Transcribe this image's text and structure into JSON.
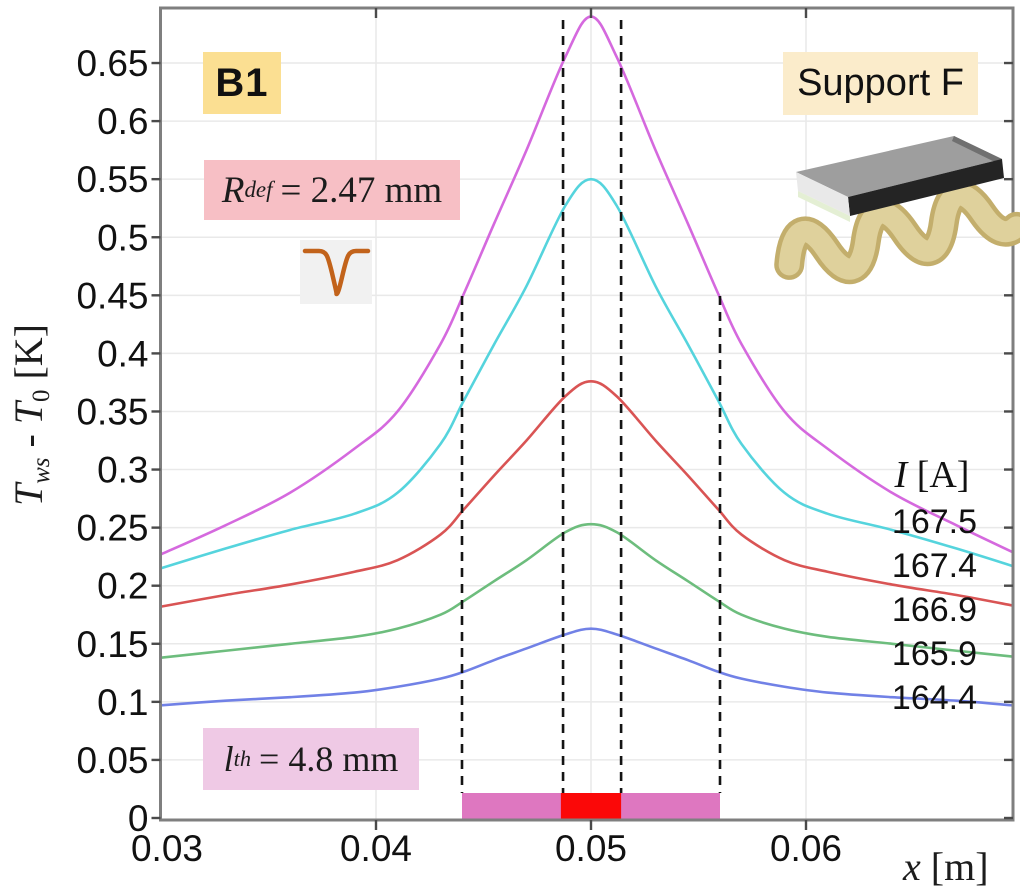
{
  "annotations": {
    "b1": "B1",
    "support": "Support F",
    "r_def": {
      "symbol": "R",
      "subscript": "def",
      "rest": "= 2.47 mm"
    },
    "l_th": {
      "symbol": "l",
      "subscript": "th",
      "rest": "= 4.8 mm"
    },
    "notch_icon": "defect-notch-icon",
    "support_icon": "corrugated-support-3d"
  },
  "axis_titles": {
    "y": {
      "t1": "T",
      "s1": "ws",
      "mid": "-",
      "t2": "T",
      "s2": "0",
      "units": "[K]"
    },
    "x": {
      "sym": "x",
      "units": "[m]"
    }
  },
  "colors": {
    "b1_bg": "#fbdf92",
    "support_bg": "#fbeccb",
    "rdef_bg": "#f7bfc5",
    "lth_bg": "#efc9e5",
    "bar_pink": "#de77c0",
    "bar_red": "#fb0808",
    "frame": "#7f7f7f",
    "grid": "#e9e9e9",
    "dashes": "#141414",
    "notch_curve": "#c2631b"
  },
  "chart_data": {
    "type": "line",
    "title": "",
    "xlabel": "x [m]",
    "ylabel": "T_ws - T_0 [K]",
    "xlim": [
      0.03,
      0.0696
    ],
    "ylim": [
      0,
      0.697
    ],
    "grid": true,
    "x_tick_values": [
      0.03,
      0.04,
      0.05,
      0.06
    ],
    "x_tick_labels": [
      "0.03",
      "0.04",
      "0.05",
      "0.06"
    ],
    "y_tick_values": [
      0,
      0.05,
      0.1,
      0.15,
      0.2,
      0.25,
      0.3,
      0.35,
      0.4,
      0.45,
      0.5,
      0.55,
      0.6,
      0.65
    ],
    "y_tick_labels": [
      "0",
      "0.05",
      "0.1",
      "0.15",
      "0.2",
      "0.25",
      "0.3",
      "0.35",
      "0.4",
      "0.45",
      "0.5",
      "0.55",
      "0.6",
      "0.65"
    ],
    "grid_x": [
      0.04,
      0.05,
      0.06
    ],
    "grid_y": [
      0.05,
      0.1,
      0.15,
      0.2,
      0.25,
      0.3,
      0.35,
      0.4,
      0.45,
      0.5,
      0.55,
      0.6,
      0.65
    ],
    "legend_title_symbol": "I",
    "legend_title_units": " [A]",
    "legend_position": "right-inside",
    "x": [
      0.03,
      0.033,
      0.036,
      0.039,
      0.041,
      0.043,
      0.0441,
      0.0455,
      0.047,
      0.0488,
      0.05,
      0.0512,
      0.053,
      0.0545,
      0.0559,
      0.057,
      0.059,
      0.061,
      0.064,
      0.067,
      0.0696
    ],
    "series": [
      {
        "name": "167.5",
        "color": "#d569de",
        "y": [
          0.227,
          0.252,
          0.28,
          0.318,
          0.35,
          0.408,
          0.452,
          0.512,
          0.575,
          0.655,
          0.69,
          0.655,
          0.575,
          0.512,
          0.452,
          0.408,
          0.35,
          0.318,
          0.28,
          0.252,
          0.229
        ]
      },
      {
        "name": "167.4",
        "color": "#55d4dd",
        "y": [
          0.215,
          0.232,
          0.248,
          0.262,
          0.28,
          0.322,
          0.36,
          0.408,
          0.458,
          0.527,
          0.55,
          0.527,
          0.458,
          0.408,
          0.36,
          0.322,
          0.28,
          0.262,
          0.248,
          0.232,
          0.217
        ]
      },
      {
        "name": "166.9",
        "color": "#d95454",
        "y": [
          0.182,
          0.192,
          0.201,
          0.212,
          0.222,
          0.244,
          0.266,
          0.295,
          0.325,
          0.363,
          0.376,
          0.363,
          0.325,
          0.295,
          0.266,
          0.244,
          0.222,
          0.212,
          0.201,
          0.192,
          0.183
        ]
      },
      {
        "name": "165.9",
        "color": "#6dbd7d",
        "y": [
          0.138,
          0.144,
          0.15,
          0.156,
          0.163,
          0.175,
          0.187,
          0.204,
          0.222,
          0.246,
          0.253,
          0.246,
          0.222,
          0.204,
          0.187,
          0.175,
          0.163,
          0.156,
          0.15,
          0.144,
          0.139
        ]
      },
      {
        "name": "164.4",
        "color": "#7181e6",
        "y": [
          0.097,
          0.101,
          0.104,
          0.108,
          0.113,
          0.12,
          0.126,
          0.136,
          0.146,
          0.158,
          0.163,
          0.158,
          0.146,
          0.136,
          0.126,
          0.12,
          0.113,
          0.108,
          0.104,
          0.101,
          0.097
        ]
      }
    ],
    "dashed_guides": {
      "outer": [
        0.044,
        0.056
      ],
      "inner": [
        0.0487,
        0.0514
      ]
    },
    "defect_bar": {
      "x0": 0.044,
      "x1": 0.056,
      "color": "#de77c0",
      "core_x0": 0.0486,
      "core_x1": 0.0514,
      "core_color": "#fb0808"
    }
  }
}
